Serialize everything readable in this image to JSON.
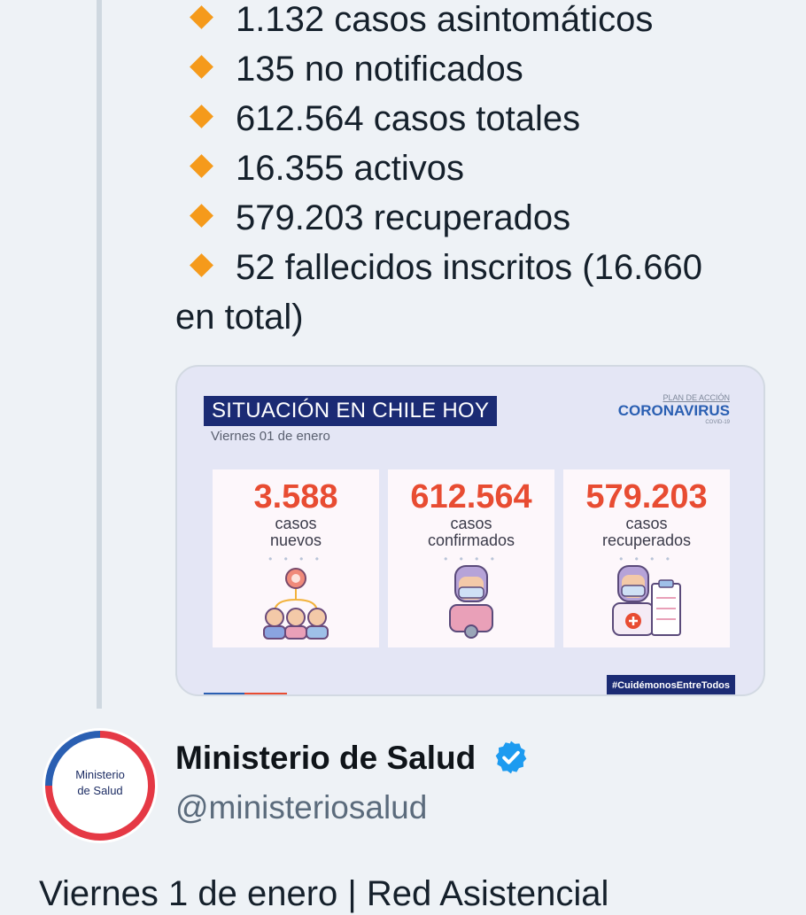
{
  "bullets": [
    "1.132 casos asintomáticos",
    "135 no notificados",
    "612.564 casos totales",
    "16.355 activos",
    "579.203 recuperados",
    "52 fallecidos inscritos (16.660"
  ],
  "bullet_continuation": "en total)",
  "card": {
    "title": "SITUACIÓN EN CHILE HOY",
    "date": "Viernes 01 de enero",
    "logo_plan": "PLAN DE ACCIÓN",
    "logo_name": "CORONAVIRUS",
    "logo_sub": "COVID-19",
    "boxes": [
      {
        "number": "3.588",
        "label_1": "casos",
        "label_2": "nuevos",
        "illustration": "group-people-virus-icon"
      },
      {
        "number": "612.564",
        "label_1": "casos",
        "label_2": "confirmados",
        "illustration": "masked-person-virus-icon"
      },
      {
        "number": "579.203",
        "label_1": "casos",
        "label_2": "recuperados",
        "illustration": "doctor-clipboard-icon"
      }
    ],
    "hashtag": "#CuidémonosEntreTodos"
  },
  "account": {
    "avatar_line_1": "Ministerio",
    "avatar_line_2": "de Salud",
    "name": "Ministerio de Salud",
    "handle": "@ministeriosalud",
    "verified_icon": "verified-badge-icon"
  },
  "next_tweet_text": "Viernes 1 de enero | Red Asistencial",
  "colors": {
    "bullet": "#f59a1b",
    "accent_red": "#e84c32",
    "navy": "#1b2b74",
    "verified": "#1d9bf0"
  }
}
